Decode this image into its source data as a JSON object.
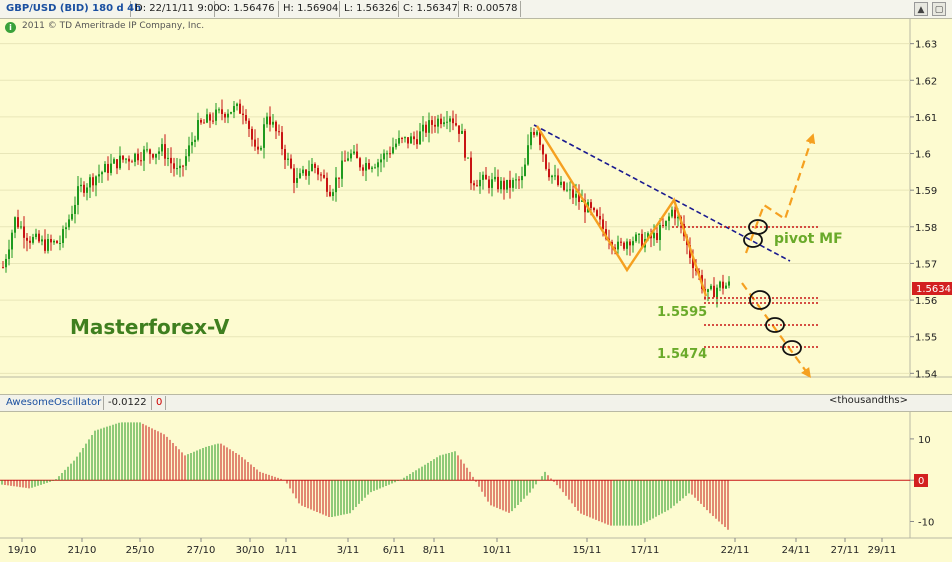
{
  "header": {
    "symbol": "GBP/USD (BID) 180 d 4h",
    "date": "D: 22/11/11 9:00",
    "open": "O: 1.56476",
    "high": "H: 1.56904",
    "low": "L: 1.56326",
    "close": "C: 1.56347",
    "range": "R: 0.00578",
    "copyright": "2011 © TD Ameritrade IP Company, Inc."
  },
  "oscillator": {
    "name": "AwesomeOscillator",
    "value": "-0.0122",
    "flag": "0",
    "units": "<thousandths>"
  },
  "annotations": {
    "watermark": "Masterforex-V",
    "pivot": "pivot MF",
    "level1": "1.5595",
    "level2": "1.5474",
    "price_tag": "1.5634"
  },
  "colors": {
    "background": "#fdfbd0",
    "bull": "#1f9a1f",
    "bear": "#c81414",
    "pattern": "#f5a020",
    "trendline": "#1a1a90",
    "level_dots": "#c81414"
  },
  "chart_data": [
    {
      "type": "candlestick",
      "title": "GBP/USD (BID) 180 d 4h",
      "y_ticks": [
        "1.54",
        "1.55",
        "1.56",
        "1.57",
        "1.58",
        "1.59",
        "1.6",
        "1.61",
        "1.62",
        "1.63"
      ],
      "ylim": [
        1.539,
        1.637
      ],
      "x_ticks": [
        "19/10",
        "21/10",
        "25/10",
        "27/10",
        "30/10",
        "1/11",
        "3/11",
        "6/11",
        "8/11",
        "10/11",
        "15/11",
        "17/11",
        "22/11",
        "24/11",
        "27/11",
        "29/11"
      ],
      "levels": [
        1.5595,
        1.5474
      ],
      "last_price": 1.5634,
      "grid": true
    },
    {
      "type": "bar",
      "title": "AwesomeOscillator",
      "y_ticks": [
        "10",
        "0",
        "-10"
      ],
      "ylim": [
        -14,
        17
      ],
      "last_value": -0.0122
    }
  ]
}
